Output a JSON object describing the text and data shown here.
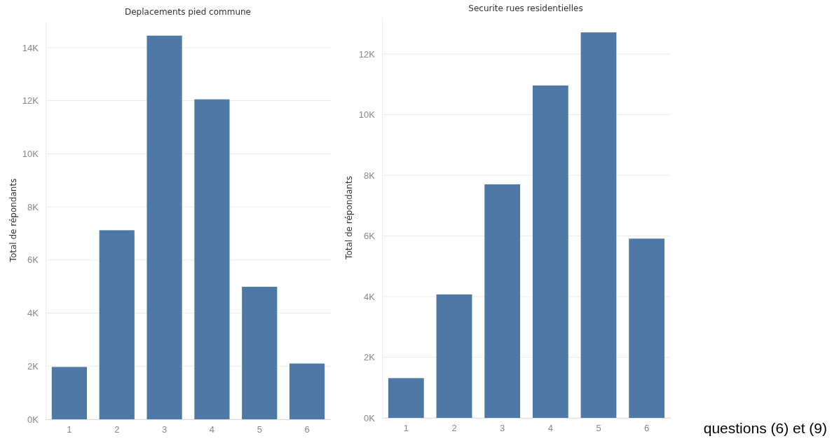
{
  "chart_data": [
    {
      "type": "bar",
      "title": "Deplacements pied commune",
      "ylabel": "Total de répondants",
      "categories": [
        "1",
        "2",
        "3",
        "4",
        "5",
        "6"
      ],
      "values": [
        1970,
        7120,
        14450,
        12050,
        4990,
        2100
      ],
      "color": "#4e79a7",
      "ylim": [
        0,
        15000
      ],
      "yticks": [
        {
          "value": 0,
          "label": "0K"
        },
        {
          "value": 2000,
          "label": "2K"
        },
        {
          "value": 4000,
          "label": "4K"
        },
        {
          "value": 6000,
          "label": "6K"
        },
        {
          "value": 8000,
          "label": "8K"
        },
        {
          "value": 10000,
          "label": "10K"
        },
        {
          "value": 12000,
          "label": "12K"
        },
        {
          "value": 14000,
          "label": "14K"
        }
      ],
      "grid": "y"
    },
    {
      "type": "bar",
      "title": "Securite rues residentielles",
      "ylabel": "Total de répondants",
      "categories": [
        "1",
        "2",
        "3",
        "4",
        "5",
        "6"
      ],
      "values": [
        1310,
        4070,
        7700,
        10960,
        12710,
        5910
      ],
      "color": "#4e79a7",
      "ylim": [
        0,
        13200
      ],
      "yticks": [
        {
          "value": 0,
          "label": "0K"
        },
        {
          "value": 2000,
          "label": "2K"
        },
        {
          "value": 4000,
          "label": "4K"
        },
        {
          "value": 6000,
          "label": "6K"
        },
        {
          "value": 8000,
          "label": "8K"
        },
        {
          "value": 10000,
          "label": "10K"
        },
        {
          "value": 12000,
          "label": "12K"
        }
      ],
      "grid": "y",
      "annotations": [
        "questions (6) et (9)"
      ]
    }
  ]
}
